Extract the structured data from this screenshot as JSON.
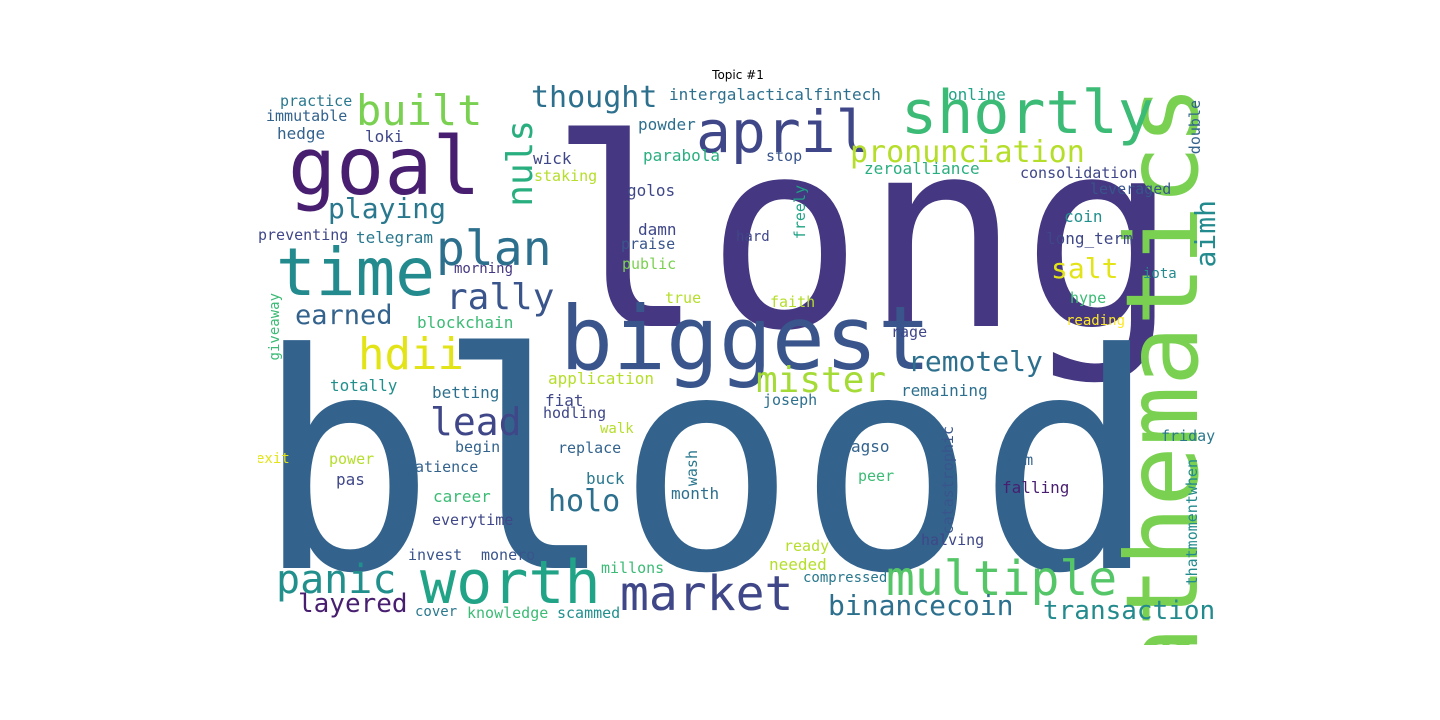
{
  "title": "Topic #1",
  "words": [
    {
      "text": "long",
      "color": "#453781",
      "vertical": false
    },
    {
      "text": "blood",
      "color": "#33638d",
      "vertical": false
    },
    {
      "text": "biggest",
      "color": "#39558c",
      "vertical": false
    },
    {
      "text": "mathematics",
      "color": "#7ad151",
      "vertical": true
    },
    {
      "text": "goal",
      "color": "#481f70",
      "vertical": false
    },
    {
      "text": "time",
      "color": "#238a8d",
      "vertical": false
    },
    {
      "text": "april",
      "color": "#3f4788",
      "vertical": false
    },
    {
      "text": "shortly",
      "color": "#3bbb75",
      "vertical": false
    },
    {
      "text": "worth",
      "color": "#20a386",
      "vertical": false
    },
    {
      "text": "multiple",
      "color": "#55c667",
      "vertical": false
    },
    {
      "text": "market",
      "color": "#3f4788",
      "vertical": false
    },
    {
      "text": "plan",
      "color": "#2d708e",
      "vertical": false
    },
    {
      "text": "built",
      "color": "#7ad151",
      "vertical": false
    },
    {
      "text": "nuls",
      "color": "#29af7f",
      "vertical": true
    },
    {
      "text": "hdii",
      "color": "#e3e418",
      "vertical": false
    },
    {
      "text": "panic",
      "color": "#21908d",
      "vertical": false
    },
    {
      "text": "pronunciation",
      "color": "#b5de2b",
      "vertical": false
    },
    {
      "text": "rally",
      "color": "#39558c",
      "vertical": false
    },
    {
      "text": "mister",
      "color": "#a5db36",
      "vertical": false
    },
    {
      "text": "lead",
      "color": "#3f4788",
      "vertical": false
    },
    {
      "text": "thought",
      "color": "#2d708e",
      "vertical": false
    },
    {
      "text": "playing",
      "color": "#2a788e",
      "vertical": false
    },
    {
      "text": "remotely",
      "color": "#2d708e",
      "vertical": false
    },
    {
      "text": "holo",
      "color": "#2d708e",
      "vertical": false
    },
    {
      "text": "transaction",
      "color": "#238a8d",
      "vertical": false
    },
    {
      "text": "binancecoin",
      "color": "#2d708e",
      "vertical": false
    },
    {
      "text": "earned",
      "color": "#33638d",
      "vertical": false
    },
    {
      "text": "salt",
      "color": "#e3e418",
      "vertical": false
    },
    {
      "text": "layered",
      "color": "#481f70",
      "vertical": false
    },
    {
      "text": "aimh",
      "color": "#238a8d",
      "vertical": true
    },
    {
      "text": "intergalacticalfintech",
      "color": "#2d708e",
      "vertical": false
    },
    {
      "text": "online",
      "color": "#20a386",
      "vertical": false
    },
    {
      "text": "double",
      "color": "#33638d",
      "vertical": true
    },
    {
      "text": "practice",
      "color": "#2a788e",
      "vertical": false
    },
    {
      "text": "immutable",
      "color": "#33638d",
      "vertical": false
    },
    {
      "text": "hedge",
      "color": "#33638d",
      "vertical": false
    },
    {
      "text": "loki",
      "color": "#3f4788",
      "vertical": false
    },
    {
      "text": "powder",
      "color": "#2d708e",
      "vertical": false
    },
    {
      "text": "parabola",
      "color": "#29af7f",
      "vertical": false
    },
    {
      "text": "wick",
      "color": "#3f4788",
      "vertical": false
    },
    {
      "text": "stop",
      "color": "#39558c",
      "vertical": false
    },
    {
      "text": "staking",
      "color": "#b5de2b",
      "vertical": false
    },
    {
      "text": "zeroalliance",
      "color": "#29af7f",
      "vertical": false
    },
    {
      "text": "consolidation",
      "color": "#3f4788",
      "vertical": false
    },
    {
      "text": "leveraged",
      "color": "#39558c",
      "vertical": false
    },
    {
      "text": "golos",
      "color": "#3f4788",
      "vertical": false
    },
    {
      "text": "freely",
      "color": "#20a386",
      "vertical": true
    },
    {
      "text": "coin",
      "color": "#21908d",
      "vertical": false
    },
    {
      "text": "preventing",
      "color": "#3f4788",
      "vertical": false
    },
    {
      "text": "telegram",
      "color": "#2a788e",
      "vertical": false
    },
    {
      "text": "damn",
      "color": "#3f4788",
      "vertical": false
    },
    {
      "text": "praise",
      "color": "#39558c",
      "vertical": false
    },
    {
      "text": "hard",
      "color": "#3f4788",
      "vertical": false
    },
    {
      "text": "long_term",
      "color": "#3f4788",
      "vertical": false
    },
    {
      "text": "morning",
      "color": "#453781",
      "vertical": false
    },
    {
      "text": "public",
      "color": "#7ad151",
      "vertical": false
    },
    {
      "text": "iota",
      "color": "#238a8d",
      "vertical": false
    },
    {
      "text": "giveaway",
      "color": "#3bbb75",
      "vertical": true
    },
    {
      "text": "true",
      "color": "#b5de2b",
      "vertical": false
    },
    {
      "text": "faith",
      "color": "#b5de2b",
      "vertical": false
    },
    {
      "text": "hype",
      "color": "#3bbb75",
      "vertical": false
    },
    {
      "text": "reading",
      "color": "#fde725",
      "vertical": false
    },
    {
      "text": "blockchain",
      "color": "#3bbb75",
      "vertical": false
    },
    {
      "text": "rage",
      "color": "#3f4788",
      "vertical": false
    },
    {
      "text": "application",
      "color": "#b5de2b",
      "vertical": false
    },
    {
      "text": "remaining",
      "color": "#2d708e",
      "vertical": false
    },
    {
      "text": "totally",
      "color": "#21908d",
      "vertical": false
    },
    {
      "text": "betting",
      "color": "#2d708e",
      "vertical": false
    },
    {
      "text": "fiat",
      "color": "#3f4788",
      "vertical": false
    },
    {
      "text": "joseph",
      "color": "#2d708e",
      "vertical": false
    },
    {
      "text": "hodling",
      "color": "#3f4788",
      "vertical": false
    },
    {
      "text": "walk",
      "color": "#b5de2b",
      "vertical": false
    },
    {
      "text": "catastrophic",
      "color": "#39558c",
      "vertical": true
    },
    {
      "text": "exit",
      "color": "#e3e418",
      "vertical": false
    },
    {
      "text": "power",
      "color": "#b5de2b",
      "vertical": false
    },
    {
      "text": "begin",
      "color": "#33638d",
      "vertical": false
    },
    {
      "text": "replace",
      "color": "#33638d",
      "vertical": false
    },
    {
      "text": "agso",
      "color": "#33638d",
      "vertical": false
    },
    {
      "text": "wash",
      "color": "#2a788e",
      "vertical": true
    },
    {
      "text": "friday",
      "color": "#2a788e",
      "vertical": false
    },
    {
      "text": "qtum",
      "color": "#33638d",
      "vertical": false
    },
    {
      "text": "thatmomentwhen",
      "color": "#238a8d",
      "vertical": true
    },
    {
      "text": "patience",
      "color": "#33638d",
      "vertical": false
    },
    {
      "text": "pas",
      "color": "#3f4788",
      "vertical": false
    },
    {
      "text": "buck",
      "color": "#2a788e",
      "vertical": false
    },
    {
      "text": "peer",
      "color": "#3bbb75",
      "vertical": false
    },
    {
      "text": "falling",
      "color": "#481f70",
      "vertical": false
    },
    {
      "text": "career",
      "color": "#3bbb75",
      "vertical": false
    },
    {
      "text": "month",
      "color": "#2d708e",
      "vertical": false
    },
    {
      "text": "everytime",
      "color": "#3f4788",
      "vertical": false
    },
    {
      "text": "halving",
      "color": "#3f4788",
      "vertical": false
    },
    {
      "text": "ready",
      "color": "#b5de2b",
      "vertical": false
    },
    {
      "text": "invest",
      "color": "#39558c",
      "vertical": false
    },
    {
      "text": "monero",
      "color": "#39558c",
      "vertical": false
    },
    {
      "text": "millons",
      "color": "#3bbb75",
      "vertical": false
    },
    {
      "text": "needed",
      "color": "#b5de2b",
      "vertical": false
    },
    {
      "text": "compressed",
      "color": "#2a788e",
      "vertical": false
    },
    {
      "text": "cover",
      "color": "#2a788e",
      "vertical": false
    },
    {
      "text": "knowledge",
      "color": "#3bbb75",
      "vertical": false
    },
    {
      "text": "scammed",
      "color": "#21908d",
      "vertical": false
    }
  ]
}
